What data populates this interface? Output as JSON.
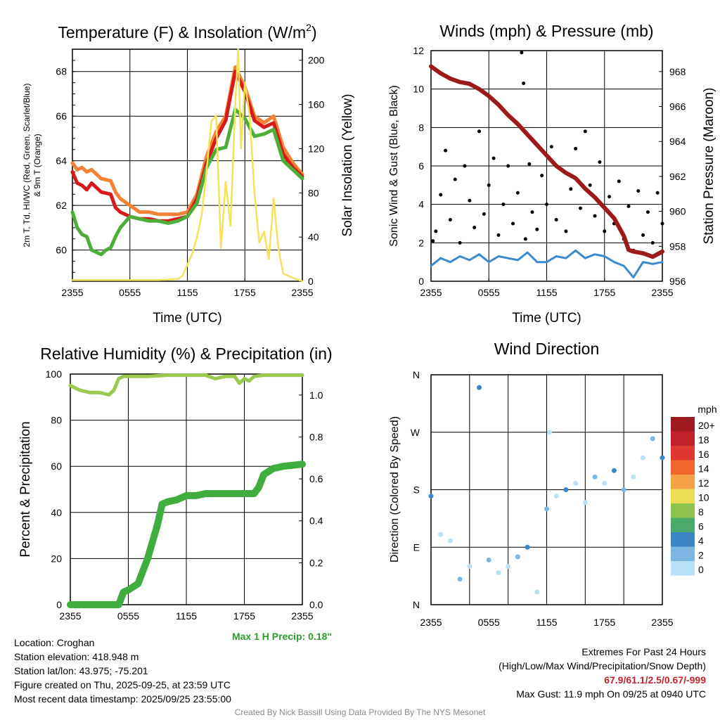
{
  "chart_data": [
    {
      "type": "line",
      "title": "Temperature (F) & Insolation (W/m2)",
      "title_main": "Temperature (F) & Insolation (W/m",
      "title_sup": "2",
      "title_close": ")",
      "xlabel": "Time (UTC)",
      "ylabel_line1": "2m T, Td, HI/WC (Red, Green, Scarlet/Blue)",
      "ylabel_line2": "& 9m T (Orange)",
      "y2label": "Solar Insolation (Yellow)",
      "x_ticks": [
        "2355",
        "0555",
        "1155",
        "1755",
        "2355"
      ],
      "x_range": [
        0,
        24
      ],
      "ylim": [
        58.6,
        69.0
      ],
      "y_ticks": [
        60,
        62,
        64,
        66,
        68
      ],
      "y2lim": [
        0,
        210
      ],
      "y2_ticks": [
        0,
        40,
        80,
        120,
        160,
        200
      ],
      "series": [
        {
          "name": "9m T",
          "color": "#f58234",
          "axis": "left",
          "x": [
            0,
            0.5,
            1,
            1.5,
            2,
            3,
            4,
            4.5,
            5,
            6,
            7,
            8,
            9,
            10,
            11,
            12,
            13,
            14,
            15,
            16,
            17,
            18,
            19,
            20,
            21,
            22,
            23,
            24
          ],
          "y": [
            63.9,
            63.6,
            63.7,
            63.5,
            63.6,
            63.2,
            63.1,
            62.6,
            62.3,
            62.0,
            61.7,
            61.7,
            61.6,
            61.6,
            61.6,
            61.7,
            62.5,
            64.2,
            65.3,
            66.0,
            68.2,
            67.3,
            66.0,
            65.7,
            66.0,
            64.6,
            63.9,
            63.4
          ]
        },
        {
          "name": "2m T",
          "color": "#d7191c",
          "axis": "left",
          "x": [
            0,
            0.5,
            1,
            1.5,
            2,
            3,
            4,
            4.5,
            5,
            6,
            7,
            8,
            9,
            10,
            11,
            12,
            13,
            14,
            15,
            16,
            17,
            18,
            19,
            20,
            21,
            22,
            23,
            24
          ],
          "y": [
            63.5,
            63.0,
            62.9,
            62.7,
            63.0,
            62.6,
            62.5,
            61.9,
            61.7,
            61.5,
            61.4,
            61.4,
            61.3,
            61.3,
            61.4,
            61.5,
            62.3,
            63.9,
            65.0,
            65.8,
            68.0,
            67.1,
            65.8,
            65.5,
            65.7,
            64.3,
            63.7,
            63.3
          ]
        },
        {
          "name": "Td",
          "color": "#4daf38",
          "axis": "left",
          "x": [
            0,
            0.5,
            1,
            1.5,
            2,
            2.5,
            3,
            3.5,
            4,
            4.5,
            5,
            6,
            7,
            8,
            9,
            10,
            11,
            12,
            13,
            14,
            15,
            16,
            17,
            18,
            19,
            20,
            21,
            22,
            23,
            24
          ],
          "y": [
            61.7,
            61.0,
            60.7,
            60.6,
            60.0,
            59.9,
            59.8,
            60.0,
            60.1,
            60.6,
            61.0,
            61.5,
            61.4,
            61.3,
            61.3,
            61.2,
            61.3,
            61.5,
            62.1,
            63.7,
            64.5,
            64.6,
            66.3,
            65.9,
            65.1,
            65.2,
            65.4,
            64.0,
            63.6,
            63.2
          ]
        },
        {
          "name": "Solar Insolation",
          "color": "#f3e35a",
          "axis": "right",
          "x": [
            0,
            8,
            9,
            11,
            11.5,
            12,
            12.5,
            13,
            13.5,
            14,
            14.5,
            15,
            15.5,
            16,
            16.5,
            17,
            17.3,
            17.6,
            18,
            18.5,
            19,
            19.5,
            20,
            20.5,
            21,
            21.5,
            22,
            23,
            24
          ],
          "y": [
            1,
            1,
            1,
            2,
            5,
            15,
            25,
            40,
            60,
            100,
            145,
            150,
            30,
            90,
            50,
            160,
            210,
            120,
            180,
            150,
            80,
            35,
            45,
            20,
            75,
            30,
            7,
            3,
            0
          ]
        }
      ]
    },
    {
      "type": "line",
      "title": "Winds (mph) & Pressure (mb)",
      "xlabel": "Time (UTC)",
      "ylabel": "Sonic Wind & Gust (Blue, Black)",
      "y2label": "Station Pressure (Maroon)",
      "x_ticks": [
        "2355",
        "0555",
        "1155",
        "1755",
        "2355"
      ],
      "x_range": [
        0,
        24
      ],
      "ylim": [
        0,
        12
      ],
      "y_ticks": [
        0,
        2,
        4,
        6,
        8,
        10,
        12
      ],
      "y2lim": [
        956,
        969.2
      ],
      "y2_ticks": [
        956,
        958,
        960,
        962,
        964,
        966,
        968
      ],
      "series": [
        {
          "name": "Station Pressure",
          "color": "#9b1b1b",
          "axis": "right",
          "x": [
            0,
            1,
            2,
            3,
            4,
            5,
            6,
            7,
            8,
            9,
            10,
            11,
            12,
            13,
            14,
            15,
            16,
            17,
            18,
            19,
            20,
            20.5,
            21,
            22,
            23,
            24
          ],
          "y": [
            968.3,
            967.9,
            967.6,
            967.4,
            967.3,
            967.0,
            966.6,
            966.1,
            965.5,
            965.0,
            964.4,
            963.8,
            963.2,
            962.6,
            962.2,
            961.9,
            961.3,
            960.8,
            960.2,
            959.6,
            958.6,
            957.8,
            957.7,
            957.6,
            957.4,
            957.7
          ]
        },
        {
          "name": "Sonic Wind",
          "color": "#3b8ad0",
          "axis": "left",
          "x": [
            0,
            1,
            2,
            3,
            4,
            5,
            6,
            7,
            8,
            9,
            10,
            11,
            12,
            13,
            14,
            15,
            16,
            17,
            18,
            19,
            20,
            21,
            21.5,
            22,
            23,
            24
          ],
          "y": [
            0.8,
            1.2,
            1.0,
            1.3,
            1.1,
            1.4,
            1.0,
            1.3,
            1.2,
            1.1,
            1.5,
            1.0,
            1.0,
            1.3,
            1.2,
            1.6,
            1.2,
            1.4,
            1.3,
            1.0,
            0.8,
            0.2,
            0.6,
            1.0,
            0.9,
            1.0
          ]
        },
        {
          "name": "Gust",
          "color": "#000000",
          "axis": "left",
          "points": [
            [
              0.2,
              2.1
            ],
            [
              0.5,
              2.6
            ],
            [
              1.0,
              4.5
            ],
            [
              1.5,
              6.8
            ],
            [
              2.0,
              3.2
            ],
            [
              2.5,
              5.3
            ],
            [
              3.0,
              2.0
            ],
            [
              3.5,
              6.0
            ],
            [
              4.0,
              4.2
            ],
            [
              4.5,
              2.8
            ],
            [
              5.0,
              7.8
            ],
            [
              5.5,
              3.5
            ],
            [
              6.0,
              5.0
            ],
            [
              6.5,
              6.4
            ],
            [
              7.0,
              2.4
            ],
            [
              7.5,
              4.0
            ],
            [
              8.0,
              6.0
            ],
            [
              8.5,
              3.0
            ],
            [
              9.0,
              4.6
            ],
            [
              9.4,
              11.9
            ],
            [
              9.6,
              10.3
            ],
            [
              9.8,
              2.2
            ],
            [
              10.2,
              6.1
            ],
            [
              10.5,
              3.6
            ],
            [
              11.0,
              2.7
            ],
            [
              11.5,
              5.5
            ],
            [
              12.0,
              4.0
            ],
            [
              12.5,
              7.0
            ],
            [
              13.0,
              3.2
            ],
            [
              13.5,
              5.8
            ],
            [
              14.0,
              2.6
            ],
            [
              14.5,
              4.8
            ],
            [
              15.0,
              6.9
            ],
            [
              15.5,
              3.8
            ],
            [
              16.0,
              7.8
            ],
            [
              16.5,
              5.0
            ],
            [
              17.0,
              3.4
            ],
            [
              17.5,
              6.2
            ],
            [
              18.0,
              2.6
            ],
            [
              18.5,
              4.4
            ],
            [
              19.0,
              3.0
            ],
            [
              19.5,
              5.2
            ],
            [
              20.0,
              2.2
            ],
            [
              20.5,
              3.9
            ],
            [
              21.0,
              1.6
            ],
            [
              21.5,
              4.7
            ],
            [
              22.0,
              2.4
            ],
            [
              22.5,
              3.6
            ],
            [
              23.0,
              2.0
            ],
            [
              23.5,
              4.6
            ],
            [
              24.0,
              3.0
            ]
          ]
        }
      ]
    },
    {
      "type": "line",
      "title": "Relative Humidity (%) & Precipitation (in)",
      "ylabel": "Percent & Precipitation",
      "x_ticks": [
        "2355",
        "0555",
        "1155",
        "1755",
        "2355"
      ],
      "x_range": [
        0,
        24
      ],
      "ylim": [
        0,
        100
      ],
      "y_ticks": [
        0,
        20,
        40,
        60,
        80,
        100
      ],
      "y2lim": [
        0,
        1.1
      ],
      "y2_ticks": [
        "0.0",
        "0.2",
        "0.4",
        "0.6",
        "0.8",
        "1.0"
      ],
      "series": [
        {
          "name": "Relative Humidity",
          "color": "#9bc94f",
          "axis": "left",
          "x": [
            0,
            1,
            2,
            3,
            4,
            4.5,
            5,
            5.5,
            6,
            8,
            10,
            12,
            14,
            15,
            16,
            17,
            17.5,
            18,
            18.5,
            19,
            20,
            22,
            24
          ],
          "y": [
            95,
            93,
            92,
            92,
            91,
            93,
            98,
            99,
            99,
            99,
            99.5,
            99.5,
            99.5,
            98,
            99,
            99,
            96,
            98,
            97,
            99,
            99.5,
            99.5,
            99.5
          ]
        },
        {
          "name": "Precipitation",
          "color": "#3fae3f",
          "axis": "right",
          "x": [
            0,
            1,
            2,
            3,
            4,
            5,
            5.5,
            6,
            7,
            8,
            8.5,
            9,
            9.5,
            10,
            11,
            12,
            13,
            14,
            15,
            16,
            17,
            18,
            19,
            19.5,
            20,
            21,
            22,
            23,
            24
          ],
          "y": [
            0,
            0,
            0,
            0,
            0,
            0,
            0.06,
            0.07,
            0.1,
            0.22,
            0.3,
            0.38,
            0.48,
            0.49,
            0.5,
            0.52,
            0.52,
            0.53,
            0.53,
            0.53,
            0.53,
            0.53,
            0.53,
            0.56,
            0.62,
            0.65,
            0.66,
            0.665,
            0.67
          ]
        }
      ]
    },
    {
      "type": "scatter",
      "title": "Wind Direction",
      "ylabel": "Direction (Colored By Speed)",
      "x_ticks": [
        "2355",
        "0555",
        "1155",
        "1755",
        "2355"
      ],
      "x_range": [
        0,
        24
      ],
      "y_ticks": [
        "N",
        "E",
        "S",
        "W",
        "N"
      ],
      "ylim": [
        0,
        360
      ],
      "legend_title": "mph",
      "legend_labels": [
        "20+",
        "18",
        "16",
        "14",
        "12",
        "10",
        "8",
        "6",
        "4",
        "2",
        "0"
      ],
      "legend_colors": [
        "#9e1a1f",
        "#c0212a",
        "#e0382f",
        "#f0672e",
        "#f5a247",
        "#ebde55",
        "#8ec44c",
        "#4aaa6c",
        "#3d86c6",
        "#7cb7e4",
        "#b8e0f7"
      ],
      "points": [
        [
          0,
          170
        ],
        [
          1,
          110
        ],
        [
          2,
          100
        ],
        [
          3,
          40
        ],
        [
          4,
          60
        ],
        [
          5,
          340
        ],
        [
          6,
          70
        ],
        [
          7,
          50
        ],
        [
          8,
          60
        ],
        [
          9,
          75
        ],
        [
          10,
          90
        ],
        [
          11,
          20
        ],
        [
          12,
          150
        ],
        [
          12.3,
          270
        ],
        [
          13,
          170
        ],
        [
          14,
          180
        ],
        [
          15,
          190
        ],
        [
          16,
          160
        ],
        [
          17,
          200
        ],
        [
          18,
          190
        ],
        [
          19,
          210
        ],
        [
          20,
          180
        ],
        [
          21,
          200
        ],
        [
          22,
          230
        ],
        [
          23,
          260
        ],
        [
          24,
          230
        ]
      ]
    }
  ],
  "footer_left": {
    "location": "Location: Croghan",
    "elevation": "Station elevation: 418.948 m",
    "latlon": "Station lat/lon: 43.975; -75.201",
    "created": "Figure created on Thu, 2025-09-25, at 23:59 UTC",
    "recent": "Most recent data timestamp: 2025/09/25 23:55:00"
  },
  "max_precip": "Max 1 H Precip: 0.18\"",
  "footer_right": {
    "line1": "Extremes For Past 24 Hours",
    "line2": "(High/Low/Max Wind/Precipitation/Snow Depth)",
    "extremes": "67.9/61.1/2.5/0.67/-999",
    "max_gust": "Max Gust: 11.9 mph On 09/25 at 0940 UTC"
  },
  "credit": "Created By Nick Bassill Using Data Provided By The NYS Mesonet"
}
